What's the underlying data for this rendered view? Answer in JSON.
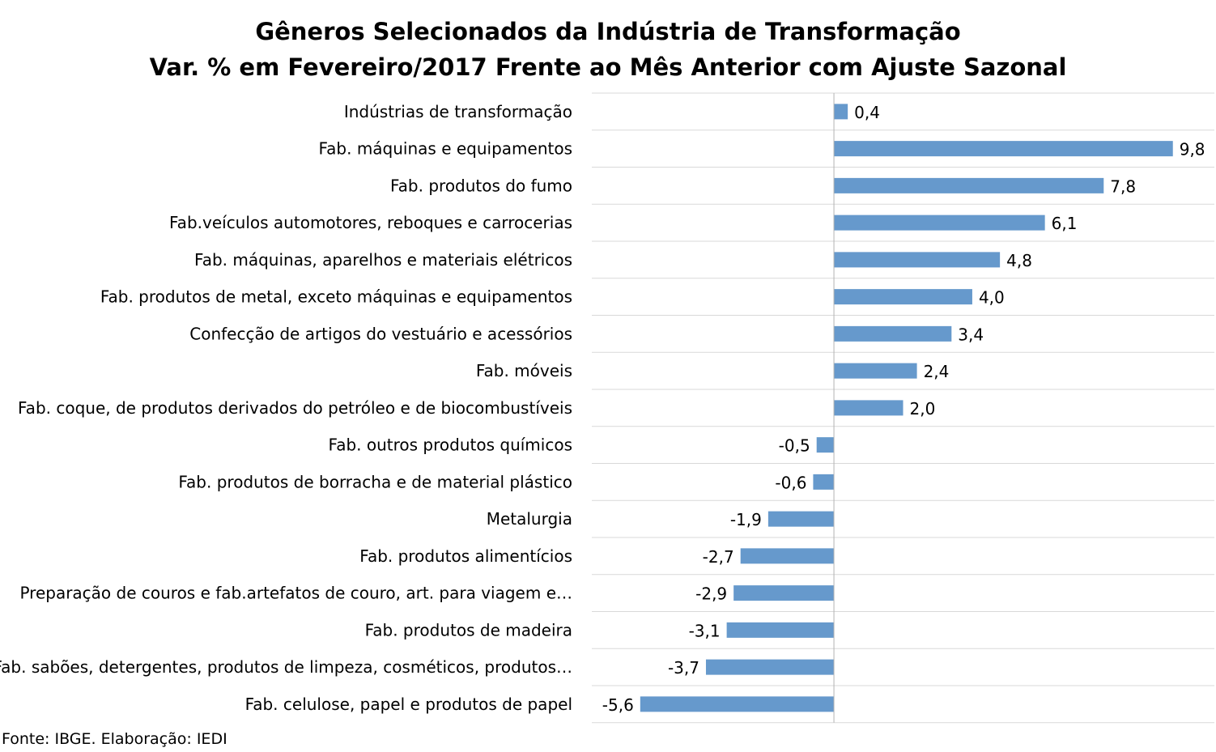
{
  "chart_data": {
    "type": "bar",
    "orientation": "horizontal",
    "title": "Gêneros Selecionados da Indústria de Transformação",
    "subtitle": "Var. % em Fevereiro/2017 Frente ao Mês Anterior com Ajuste Sazonal",
    "categories": [
      "Indústrias de transformação",
      "Fab. máquinas e equipamentos",
      "Fab. produtos do fumo",
      "Fab.veículos automotores, reboques e carrocerias",
      "Fab. máquinas, aparelhos e materiais elétricos",
      "Fab. produtos de metal, exceto máquinas e equipamentos",
      "Confecção de artigos do vestuário e acessórios",
      "Fab. móveis",
      "Fab. coque, de produtos derivados do petróleo e de biocombustíveis",
      "Fab. outros produtos químicos",
      "Fab. produtos de borracha e de material plástico",
      "Metalurgia",
      "Fab. produtos alimentícios",
      "Preparação de couros e fab.artefatos de couro, art. para viagem e…",
      "Fab. produtos de madeira",
      "Fab. sabões, detergentes, produtos de limpeza, cosméticos, produtos…",
      "Fab. celulose, papel e produtos de papel"
    ],
    "values": [
      0.4,
      9.8,
      7.8,
      6.1,
      4.8,
      4.0,
      3.4,
      2.4,
      2.0,
      -0.5,
      -0.6,
      -1.9,
      -2.7,
      -2.9,
      -3.1,
      -3.7,
      -5.6
    ],
    "value_labels": [
      "0,4",
      "9,8",
      "7,8",
      "6,1",
      "4,8",
      "4,0",
      "3,4",
      "2,4",
      "2,0",
      "-0,5",
      "-0,6",
      "-1,9",
      "-2,7",
      "-2,9",
      "-3,1",
      "-3,7",
      "-5,6"
    ],
    "xlim": [
      -7,
      11
    ],
    "grid": "horizontal",
    "bar_color": "#6699cc",
    "grid_color": "#d9d9d9",
    "axis_color": "#b3b3b3"
  },
  "source": "Fonte: IBGE. Elaboração: IEDI"
}
